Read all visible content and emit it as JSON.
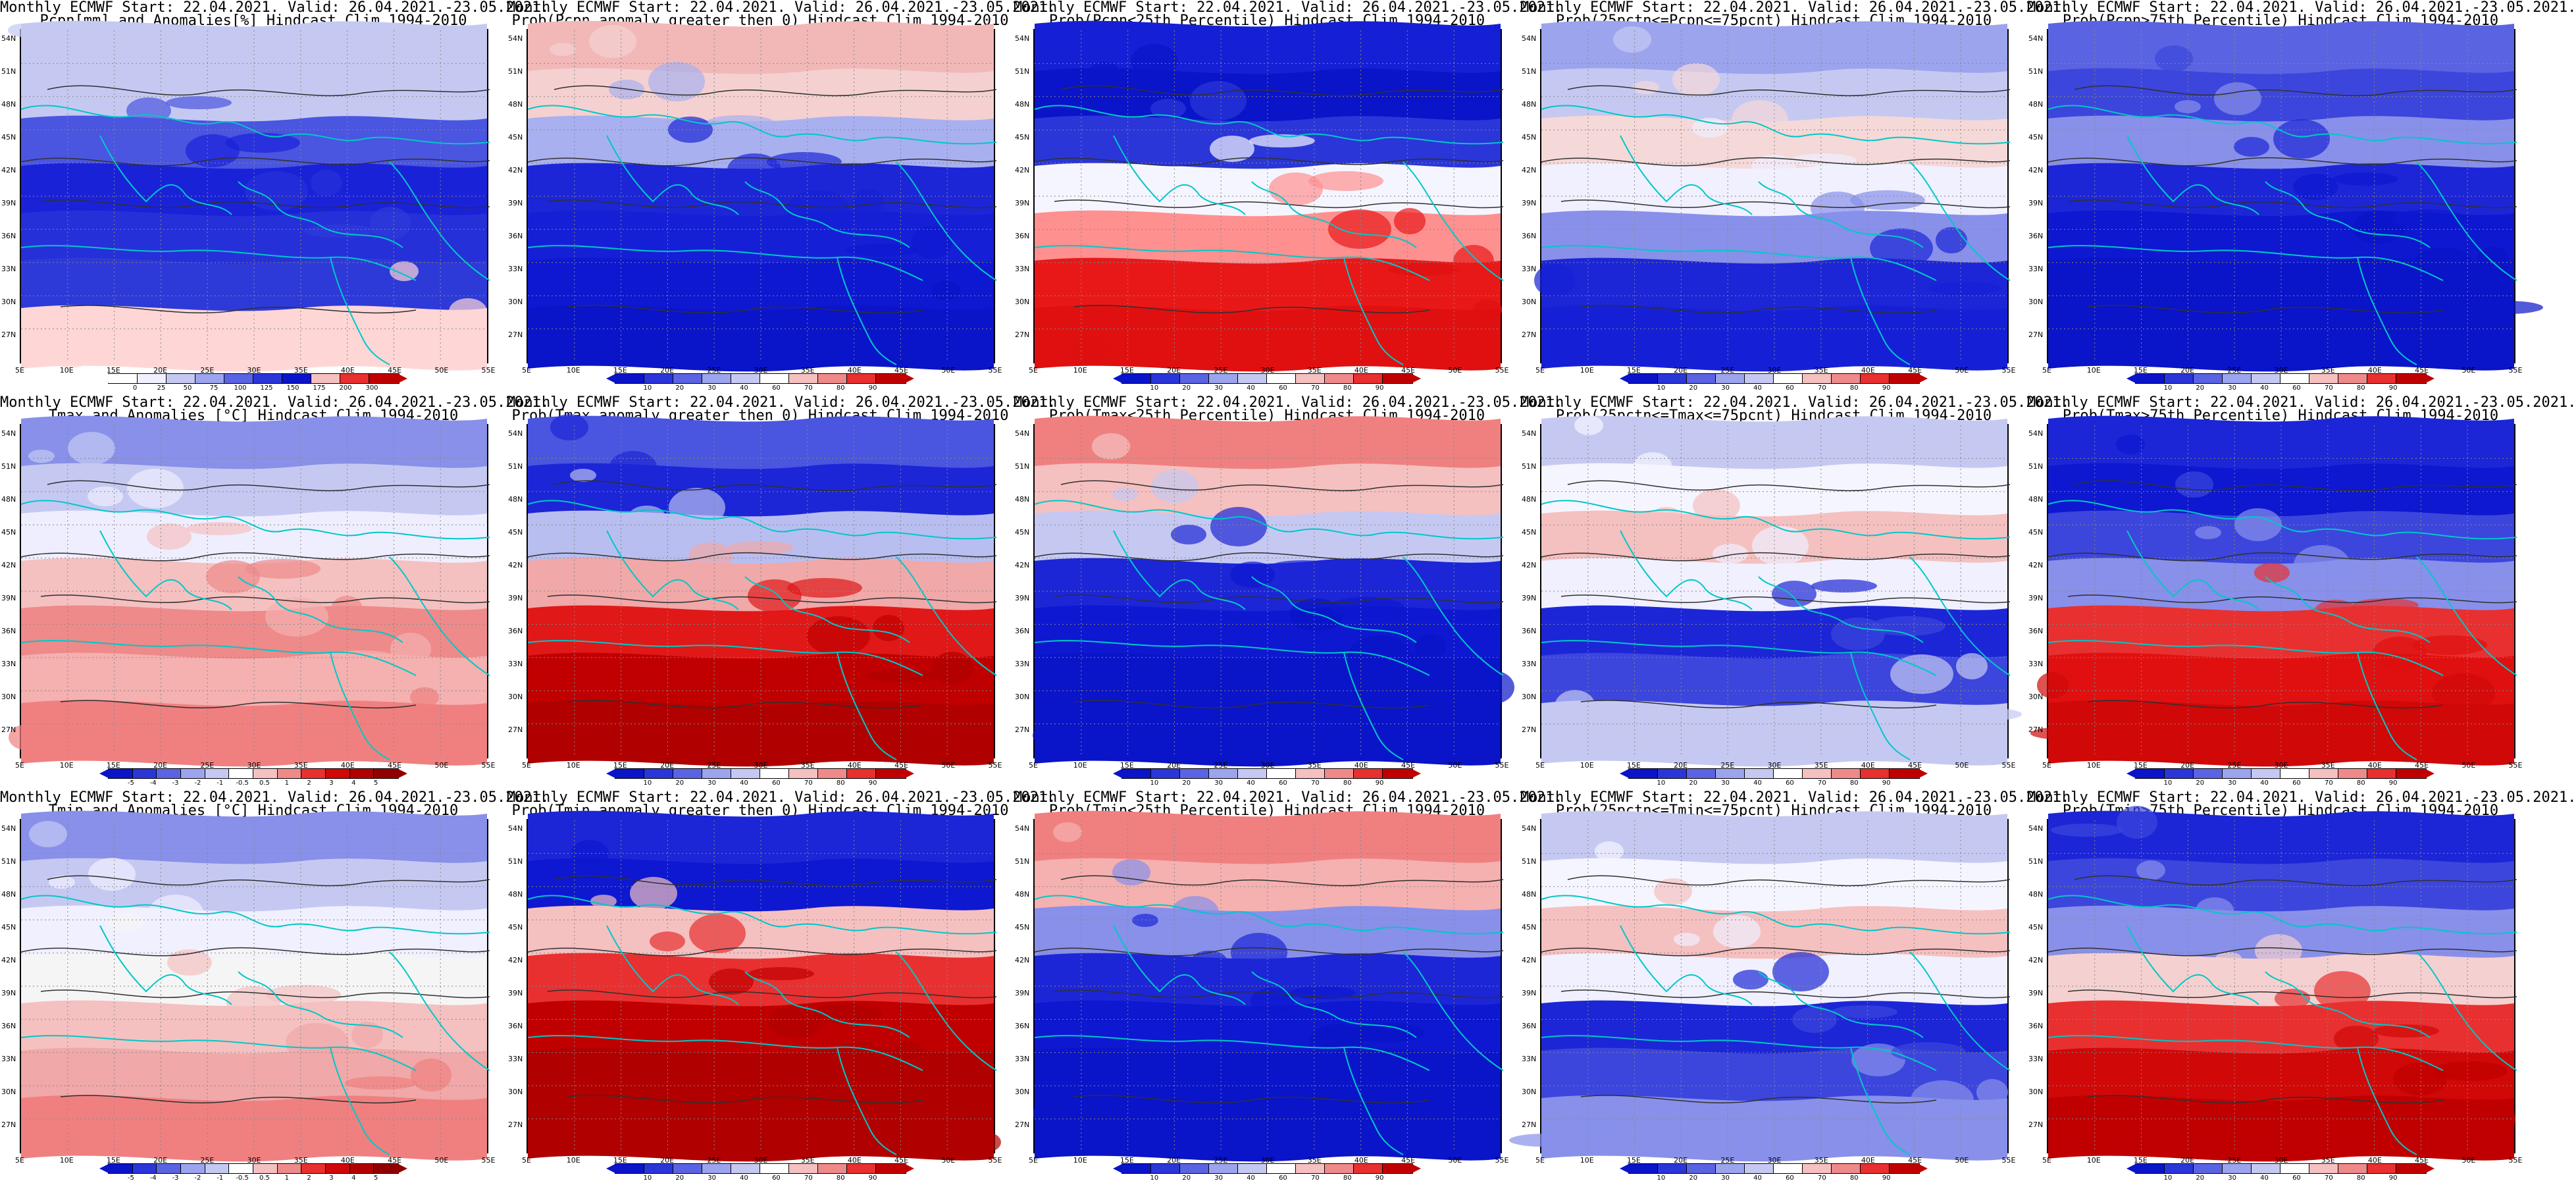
{
  "panels": [
    [
      {
        "line1": "Monthly ECMWF Start: 22.04.2021. Valid: 26.04.2021.-23.05.2021.",
        "line2": "Pcpn[mm] and Anomalies[%] Hindcast Clim 1994-2010",
        "kind": "pcpn-anom",
        "color_levels": [
          0,
          25,
          50,
          75,
          100,
          125,
          150,
          175,
          200,
          300
        ],
        "rows": [
          "#c5c9f2",
          "#c5c9f2",
          "#4a55e0",
          "#1a22d8",
          "#2630d8",
          "#2e3ad8",
          "#ffd6d6"
        ]
      },
      {
        "line1": "Monthly ECMWF Start: 22.04.2021. Valid: 26.04.2021.-23.05.2021.",
        "line2": "Prob(Pcpn anomaly greater then 0) Hindcast Clim 1994-2010",
        "kind": "prob",
        "color_levels": [
          10,
          20,
          30,
          40,
          60,
          70,
          80,
          90
        ],
        "rows": [
          "#f2b8b8",
          "#f5d0d0",
          "#a8b0f0",
          "#1c26d6",
          "#1520d6",
          "#0d18d0",
          "#0a14c8"
        ]
      },
      {
        "line1": "Monthly ECMWF Start: 22.04.2021. Valid: 26.04.2021.-23.05.2021.",
        "line2": "Prob(Pcpn<25th Percentile) Hindcast Clim 1994-2010",
        "kind": "prob",
        "color_levels": [
          10,
          20,
          30,
          40,
          60,
          70,
          80,
          90
        ],
        "rows": [
          "#1520d6",
          "#0a14c8",
          "#2a36d8",
          "#f5f5ff",
          "#ff9090",
          "#e81818",
          "#e01010"
        ]
      },
      {
        "line1": "Monthly ECMWF Start: 22.04.2021. Valid: 26.04.2021.-23.05.2021.",
        "line2": "Prob(25pctn<=Pcpn<=75pcnt) Hindcast Clim 1994-2010",
        "kind": "prob",
        "color_levels": [
          10,
          20,
          30,
          40,
          60,
          70,
          80,
          90
        ],
        "rows": [
          "#9ca4ee",
          "#c5c9f2",
          "#f5d8d8",
          "#f0f0ff",
          "#8890ea",
          "#1c26d6",
          "#1520d6"
        ]
      },
      {
        "line1": "Monthly ECMWF Start: 22.04.2021. Valid: 26.04.2021.-23.05.2021.",
        "line2": "Prob(Pcpn>75th Percentile) Hindcast Clim 1994-2010",
        "kind": "prob",
        "color_levels": [
          10,
          20,
          30,
          40,
          60,
          70,
          80,
          90
        ],
        "rows": [
          "#5a64e2",
          "#3c46dc",
          "#8890ea",
          "#1c26d6",
          "#0d18d0",
          "#0a14c8",
          "#0a14c8"
        ]
      }
    ],
    [
      {
        "line1": "Monthly ECMWF Start: 22.04.2021. Valid: 26.04.2021.-23.05.2021.",
        "line2": "Tmax and Anomalies [°C] Hindcast Clim 1994-2010",
        "kind": "temp-anom",
        "color_levels": [
          -5,
          -4,
          -3,
          -2,
          -1,
          -0.5,
          0.5,
          1,
          2,
          3,
          4,
          5
        ],
        "rows": [
          "#8890ea",
          "#c5c9f2",
          "#eeeeff",
          "#f5c0c0",
          "#ee8a8a",
          "#f5b0b0",
          "#f08080"
        ]
      },
      {
        "line1": "Monthly ECMWF Start: 22.04.2021. Valid: 26.04.2021.-23.05.2021.",
        "line2": "Prob(Tmax anomaly greater then 0) Hindcast Clim 1994-2010",
        "kind": "prob",
        "color_levels": [
          10,
          20,
          30,
          40,
          60,
          70,
          80,
          90
        ],
        "rows": [
          "#4a55e0",
          "#1c26d6",
          "#b8bef0",
          "#f0a8a8",
          "#e01818",
          "#c00000",
          "#b00000"
        ]
      },
      {
        "line1": "Monthly ECMWF Start: 22.04.2021. Valid: 26.04.2021.-23.05.2021.",
        "line2": "Prob(Tmax<25th Percentile) Hindcast Clim 1994-2010",
        "kind": "prob",
        "color_levels": [
          10,
          20,
          30,
          40,
          60,
          70,
          80,
          90
        ],
        "rows": [
          "#f08080",
          "#f5c0c0",
          "#c5c9f2",
          "#1c26d6",
          "#0d18d0",
          "#0a14c8",
          "#0a14c8"
        ]
      },
      {
        "line1": "Monthly ECMWF Start: 22.04.2021. Valid: 26.04.2021.-23.05.2021.",
        "line2": "Prob(25pctn<=Tmax<=75pcnt) Hindcast Clim 1994-2010",
        "kind": "prob",
        "color_levels": [
          10,
          20,
          30,
          40,
          60,
          70,
          80,
          90
        ],
        "rows": [
          "#c5c9f2",
          "#f5f5ff",
          "#f5c0c0",
          "#f0f0ff",
          "#1c26d6",
          "#3c46dc",
          "#c5c9f2"
        ]
      },
      {
        "line1": "Monthly ECMWF Start: 22.04.2021. Valid: 26.04.2021.-23.05.2021.",
        "line2": "Prob(Tmax>75th Percentile) Hindcast Clim 1994-2010",
        "kind": "prob",
        "color_levels": [
          10,
          20,
          30,
          40,
          60,
          70,
          80,
          90
        ],
        "rows": [
          "#1c26d6",
          "#0d18d0",
          "#3c46dc",
          "#8890ea",
          "#e83030",
          "#e01010",
          "#d00808"
        ]
      }
    ],
    [
      {
        "line1": "Monthly ECMWF Start: 22.04.2021. Valid: 26.04.2021.-23.05.2021.",
        "line2": "Tmin and Anomalies [°C] Hindcast Clim 1994-2010",
        "kind": "temp-anom",
        "color_levels": [
          -5,
          -4,
          -3,
          -2,
          -1,
          -0.5,
          0.5,
          1,
          2,
          3,
          4,
          5
        ],
        "rows": [
          "#8890ea",
          "#c5c9f2",
          "#f0f0ff",
          "#f5f5f5",
          "#f5c0c0",
          "#f0a8a8",
          "#f08080"
        ]
      },
      {
        "line1": "Monthly ECMWF Start: 22.04.2021. Valid: 26.04.2021.-23.05.2021.",
        "line2": "Prob(Tmin anomaly greater then 0) Hindcast Clim 1994-2010",
        "kind": "prob",
        "color_levels": [
          10,
          20,
          30,
          40,
          60,
          70,
          80,
          90
        ],
        "rows": [
          "#1c26d6",
          "#0d18d0",
          "#f5c0c0",
          "#e83030",
          "#c00000",
          "#b00000",
          "#b00000"
        ]
      },
      {
        "line1": "Monthly ECMWF Start: 22.04.2021. Valid: 26.04.2021.-23.05.2021.",
        "line2": "Prob(Tmin<25th Percentile) Hindcast Clim 1994-2010",
        "kind": "prob",
        "color_levels": [
          10,
          20,
          30,
          40,
          60,
          70,
          80,
          90
        ],
        "rows": [
          "#f08080",
          "#f5b0b0",
          "#8890ea",
          "#1c26d6",
          "#0d18d0",
          "#0a14c8",
          "#0a14c8"
        ]
      },
      {
        "line1": "Monthly ECMWF Start: 22.04.2021. Valid: 26.04.2021.-23.05.2021.",
        "line2": "Prob(25pctn<=Tmin<=75pcnt) Hindcast Clim 1994-2010",
        "kind": "prob",
        "color_levels": [
          10,
          20,
          30,
          40,
          60,
          70,
          80,
          90
        ],
        "rows": [
          "#c5c9f2",
          "#f5f5ff",
          "#f5c0c0",
          "#f0f0ff",
          "#1c26d6",
          "#3c46dc",
          "#8890ea"
        ]
      },
      {
        "line1": "Monthly ECMWF Start: 22.04.2021. Valid: 26.04.2021.-23.05.2021.",
        "line2": "Prob(Tmin>75th Percentile) Hindcast Clim 1994-2010",
        "kind": "prob",
        "color_levels": [
          10,
          20,
          30,
          40,
          60,
          70,
          80,
          90
        ],
        "rows": [
          "#1c26d6",
          "#3c46dc",
          "#8890ea",
          "#f5d0d0",
          "#e83030",
          "#d00808",
          "#c00000"
        ]
      }
    ]
  ],
  "lat_labels": [
    "54N",
    "51N",
    "48N",
    "45N",
    "42N",
    "39N",
    "36N",
    "33N",
    "30N",
    "27N"
  ],
  "lon_labels": [
    "5E",
    "10E",
    "15E",
    "20E",
    "25E",
    "30E",
    "35E",
    "40E",
    "45E",
    "50E",
    "55E"
  ],
  "palettes": {
    "prob": [
      "#0a14c8",
      "#2a36d8",
      "#5a64e2",
      "#9ca4ee",
      "#c5c9f2",
      "#ffffff",
      "#f5c0c0",
      "#ee8a8a",
      "#e83030",
      "#c00000"
    ],
    "pcpn-anom": [
      "#ffffff",
      "#f0f0ff",
      "#c5c9f2",
      "#9ca4ee",
      "#5a64e2",
      "#2a36d8",
      "#0a14c8",
      "#f5c0c0",
      "#e83030",
      "#c00000"
    ],
    "temp-anom": [
      "#0a14c8",
      "#2a36d8",
      "#5a64e2",
      "#9ca4ee",
      "#c5c9f2",
      "#ffffff",
      "#f5c0c0",
      "#ee8a8a",
      "#e83030",
      "#d00808",
      "#b00000",
      "#900000"
    ]
  },
  "coast_color": "#00c8c8",
  "contour_color": "#303030"
}
